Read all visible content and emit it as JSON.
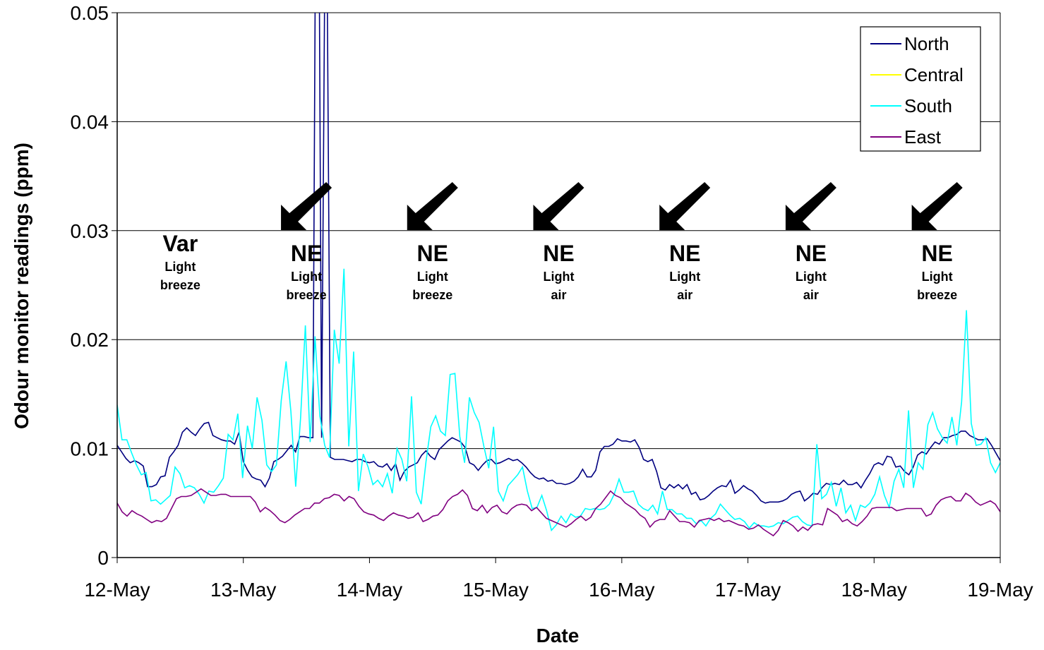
{
  "chart_data": {
    "type": "line",
    "title": "",
    "xlabel": "Date",
    "ylabel": "Odour monitor readings (ppm)",
    "ylim": [
      0,
      0.05
    ],
    "yticks": [
      "0",
      "0.01",
      "0.02",
      "0.03",
      "0.04",
      "0.05"
    ],
    "ytick_values": [
      0,
      0.01,
      0.02,
      0.03,
      0.04,
      0.05
    ],
    "xlim": [
      "12-May",
      "19-May"
    ],
    "xticks": [
      "12-May",
      "13-May",
      "14-May",
      "15-May",
      "16-May",
      "17-May",
      "18-May",
      "19-May"
    ],
    "grid": true,
    "legend_position": "top-right",
    "series": [
      {
        "name": "North",
        "color": "#000080",
        "values": [
          0.0103,
          0.0097,
          0.0091,
          0.0087,
          0.0089,
          0.0087,
          0.0084,
          0.0065,
          0.0065,
          0.0067,
          0.0074,
          0.0075,
          0.0092,
          0.0097,
          0.0103,
          0.0115,
          0.0119,
          0.0115,
          0.0112,
          0.0118,
          0.0123,
          0.0124,
          0.0112,
          0.011,
          0.0108,
          0.0107,
          0.0107,
          0.0104,
          0.0115,
          0.0088,
          0.008,
          0.0074,
          0.0072,
          0.0071,
          0.0065,
          0.0073,
          0.0088,
          0.009,
          0.0093,
          0.0098,
          0.0103,
          0.0097,
          0.0111,
          0.0111,
          0.011,
          0.011,
          0.09,
          0.011,
          0.07,
          0.0092,
          0.009,
          0.009,
          0.009,
          0.0089,
          0.0088,
          0.009,
          0.009,
          0.0088,
          0.0087,
          0.0088,
          0.0084,
          0.0083,
          0.0086,
          0.008,
          0.0086,
          0.0071,
          0.0079,
          0.0083,
          0.0085,
          0.0087,
          0.0094,
          0.0098,
          0.0093,
          0.009,
          0.0099,
          0.0103,
          0.0107,
          0.011,
          0.0108,
          0.0106,
          0.0101,
          0.0087,
          0.0085,
          0.008,
          0.0085,
          0.0089,
          0.009,
          0.0086,
          0.0087,
          0.0089,
          0.0091,
          0.0089,
          0.009,
          0.0087,
          0.0083,
          0.0078,
          0.0074,
          0.0072,
          0.0073,
          0.007,
          0.0071,
          0.0068,
          0.0068,
          0.0067,
          0.0068,
          0.007,
          0.0074,
          0.0081,
          0.0074,
          0.0074,
          0.008,
          0.0097,
          0.0102,
          0.0102,
          0.0104,
          0.0109,
          0.0107,
          0.0107,
          0.0106,
          0.0108,
          0.0101,
          0.009,
          0.0088,
          0.009,
          0.0079,
          0.0064,
          0.0062,
          0.0067,
          0.0064,
          0.0067,
          0.0063,
          0.0067,
          0.0058,
          0.006,
          0.0053,
          0.0054,
          0.0057,
          0.0061,
          0.0064,
          0.0066,
          0.0065,
          0.0071,
          0.0059,
          0.0062,
          0.0066,
          0.0063,
          0.0061,
          0.0057,
          0.0052,
          0.005,
          0.0051,
          0.0051,
          0.0051,
          0.0052,
          0.0054,
          0.0058,
          0.006,
          0.0061,
          0.0052,
          0.0055,
          0.0059,
          0.0058,
          0.0064,
          0.0068,
          0.0067,
          0.0068,
          0.0067,
          0.0071,
          0.0067,
          0.0067,
          0.0069,
          0.0064,
          0.0071,
          0.0077,
          0.0085,
          0.0087,
          0.0085,
          0.0093,
          0.0092,
          0.0083,
          0.0084,
          0.0079,
          0.0076,
          0.0083,
          0.0094,
          0.0097,
          0.0095,
          0.0101,
          0.0106,
          0.0104,
          0.011,
          0.011,
          0.0112,
          0.0113,
          0.0116,
          0.0116,
          0.0112,
          0.011,
          0.0108,
          0.0108,
          0.0109,
          0.0103,
          0.0096,
          0.0089
        ]
      },
      {
        "name": "Central",
        "color": "#ffff00",
        "values": []
      },
      {
        "name": "South",
        "color": "#00ffff",
        "values": [
          0.014,
          0.0108,
          0.0108,
          0.0096,
          0.0085,
          0.0076,
          0.0078,
          0.0052,
          0.0053,
          0.0049,
          0.0053,
          0.0057,
          0.0083,
          0.0077,
          0.0064,
          0.0066,
          0.0064,
          0.0058,
          0.005,
          0.0061,
          0.006,
          0.0066,
          0.0073,
          0.0113,
          0.0108,
          0.0132,
          0.0073,
          0.0121,
          0.01,
          0.0147,
          0.0126,
          0.0085,
          0.0079,
          0.0085,
          0.0144,
          0.018,
          0.0134,
          0.0065,
          0.0128,
          0.0213,
          0.0106,
          0.0203,
          0.013,
          0.0103,
          0.0092,
          0.0209,
          0.0178,
          0.0265,
          0.0102,
          0.0189,
          0.0061,
          0.0095,
          0.0083,
          0.0067,
          0.0071,
          0.0065,
          0.0077,
          0.0059,
          0.01,
          0.009,
          0.007,
          0.0148,
          0.006,
          0.0049,
          0.0088,
          0.012,
          0.013,
          0.0116,
          0.0112,
          0.0168,
          0.0169,
          0.0111,
          0.0087,
          0.0147,
          0.0133,
          0.0124,
          0.0102,
          0.0082,
          0.012,
          0.0061,
          0.0052,
          0.0066,
          0.0071,
          0.0076,
          0.0083,
          0.0061,
          0.0045,
          0.0046,
          0.0057,
          0.0043,
          0.0025,
          0.003,
          0.0038,
          0.0032,
          0.004,
          0.0037,
          0.0038,
          0.0045,
          0.0044,
          0.0045,
          0.0044,
          0.0045,
          0.0049,
          0.0058,
          0.0072,
          0.006,
          0.006,
          0.0061,
          0.0049,
          0.0045,
          0.0043,
          0.0048,
          0.004,
          0.0061,
          0.0044,
          0.0044,
          0.004,
          0.004,
          0.0036,
          0.0036,
          0.0031,
          0.0034,
          0.0029,
          0.0036,
          0.004,
          0.0049,
          0.0044,
          0.0039,
          0.0035,
          0.0036,
          0.0033,
          0.0027,
          0.0032,
          0.0029,
          0.0029,
          0.0028,
          0.0029,
          0.0032,
          0.0031,
          0.0034,
          0.0037,
          0.0038,
          0.0033,
          0.003,
          0.0029,
          0.0104,
          0.0054,
          0.0058,
          0.0069,
          0.0047,
          0.0064,
          0.0041,
          0.0048,
          0.0034,
          0.0048,
          0.0046,
          0.005,
          0.0058,
          0.0074,
          0.0057,
          0.0046,
          0.007,
          0.0081,
          0.0064,
          0.0135,
          0.0064,
          0.0087,
          0.0081,
          0.0122,
          0.0133,
          0.0118,
          0.011,
          0.0105,
          0.0129,
          0.0103,
          0.0143,
          0.0227,
          0.0123,
          0.0103,
          0.0104,
          0.011,
          0.0087,
          0.0078,
          0.0087
        ]
      },
      {
        "name": "East",
        "color": "#800080",
        "values": [
          0.005,
          0.0042,
          0.0038,
          0.0043,
          0.004,
          0.0038,
          0.0035,
          0.0032,
          0.0034,
          0.0033,
          0.0036,
          0.0045,
          0.0054,
          0.0056,
          0.0056,
          0.0057,
          0.006,
          0.0063,
          0.006,
          0.0057,
          0.0057,
          0.0058,
          0.0058,
          0.0056,
          0.0056,
          0.0056,
          0.0056,
          0.0056,
          0.0051,
          0.0042,
          0.0046,
          0.0043,
          0.0039,
          0.0034,
          0.0032,
          0.0035,
          0.0039,
          0.0042,
          0.0045,
          0.0045,
          0.005,
          0.005,
          0.0054,
          0.0055,
          0.0058,
          0.0057,
          0.0052,
          0.0056,
          0.0054,
          0.0047,
          0.0042,
          0.004,
          0.0039,
          0.0036,
          0.0034,
          0.0038,
          0.0041,
          0.0039,
          0.0038,
          0.0036,
          0.0037,
          0.0041,
          0.0033,
          0.0035,
          0.0038,
          0.0039,
          0.0044,
          0.0052,
          0.0056,
          0.0058,
          0.0062,
          0.0057,
          0.0045,
          0.0043,
          0.0048,
          0.0041,
          0.0046,
          0.0048,
          0.0042,
          0.004,
          0.0045,
          0.0048,
          0.0049,
          0.0048,
          0.0043,
          0.0046,
          0.0041,
          0.0036,
          0.0034,
          0.0032,
          0.003,
          0.0028,
          0.0031,
          0.0035,
          0.0038,
          0.0034,
          0.0037,
          0.0045,
          0.0049,
          0.0055,
          0.0061,
          0.0057,
          0.0055,
          0.005,
          0.0047,
          0.0044,
          0.0039,
          0.0036,
          0.0028,
          0.0033,
          0.0035,
          0.0035,
          0.0043,
          0.0038,
          0.0033,
          0.0033,
          0.0032,
          0.0028,
          0.0034,
          0.0035,
          0.0036,
          0.0034,
          0.0036,
          0.0033,
          0.0034,
          0.0032,
          0.003,
          0.0029,
          0.0026,
          0.0027,
          0.003,
          0.0026,
          0.0023,
          0.002,
          0.0025,
          0.0034,
          0.0032,
          0.0029,
          0.0024,
          0.0028,
          0.0025,
          0.003,
          0.0031,
          0.003,
          0.0045,
          0.0042,
          0.0039,
          0.0033,
          0.0035,
          0.0031,
          0.0029,
          0.0033,
          0.0038,
          0.0045,
          0.0046,
          0.0046,
          0.0046,
          0.0046,
          0.0043,
          0.0044,
          0.0045,
          0.0045,
          0.0045,
          0.0045,
          0.0038,
          0.004,
          0.0048,
          0.0053,
          0.0055,
          0.0056,
          0.0052,
          0.0052,
          0.0059,
          0.0056,
          0.0051,
          0.0048,
          0.005,
          0.0052,
          0.0049,
          0.0042
        ]
      }
    ],
    "annotations": [
      {
        "label": "Var",
        "sub1": "Light",
        "sub2": "breeze",
        "arrow": false
      },
      {
        "label": "NE",
        "sub1": "Light",
        "sub2": "breeze",
        "arrow": true
      },
      {
        "label": "NE",
        "sub1": "Light",
        "sub2": "breeze",
        "arrow": true
      },
      {
        "label": "NE",
        "sub1": "Light",
        "sub2": "air",
        "arrow": true
      },
      {
        "label": "NE",
        "sub1": "Light",
        "sub2": "air",
        "arrow": true
      },
      {
        "label": "NE",
        "sub1": "Light",
        "sub2": "air",
        "arrow": true
      },
      {
        "label": "NE",
        "sub1": "Light",
        "sub2": "breeze",
        "arrow": true
      }
    ]
  }
}
